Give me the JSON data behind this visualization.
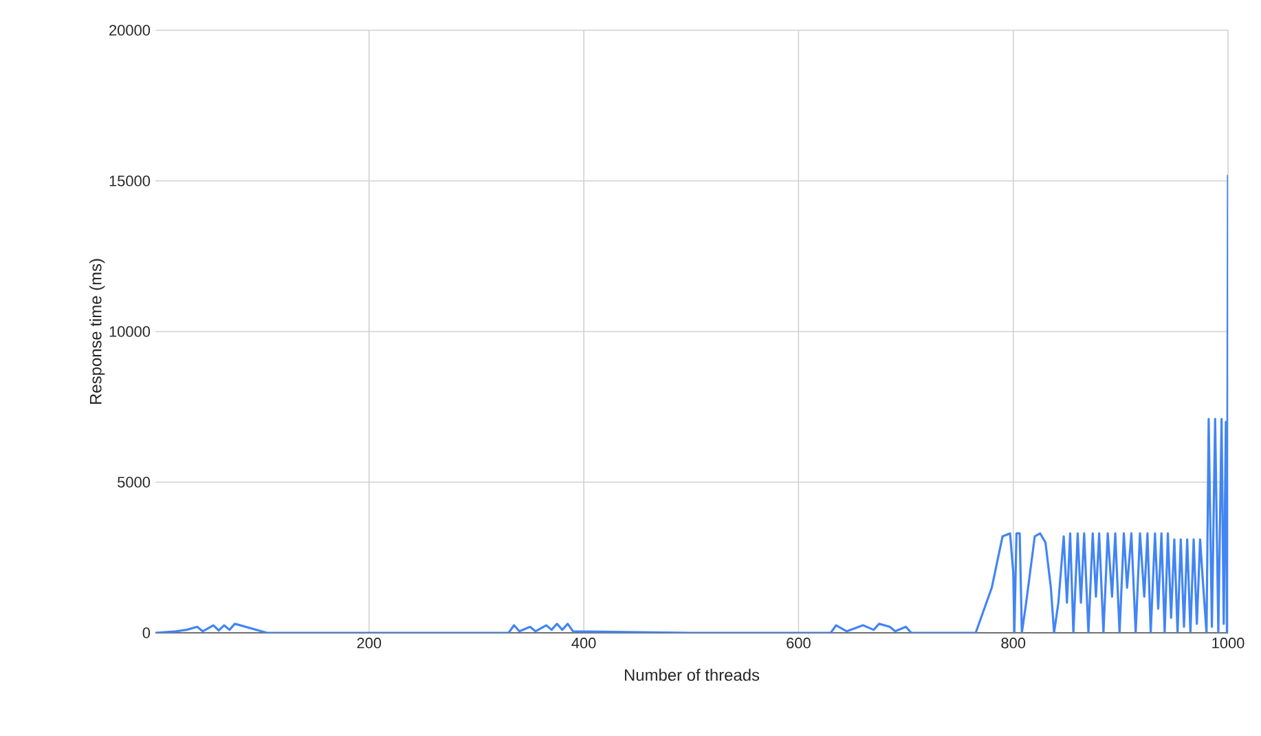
{
  "chart_data": {
    "type": "line",
    "xlabel": "Number of threads",
    "ylabel": "Response time (ms)",
    "xlim": [
      1,
      1000
    ],
    "xticks": [
      200,
      400,
      600,
      800,
      1000
    ],
    "ylim": [
      0,
      20000
    ],
    "yticks": [
      0,
      5000,
      10000,
      15000,
      20000
    ],
    "grid": true,
    "marker": "none",
    "line_style": "solid",
    "series": [
      {
        "color": "#4285f4",
        "x": [
          1,
          20,
          30,
          40,
          45,
          55,
          60,
          65,
          70,
          75,
          105,
          330,
          335,
          340,
          350,
          355,
          365,
          370,
          375,
          380,
          385,
          390,
          500,
          630,
          635,
          645,
          660,
          670,
          675,
          685,
          690,
          700,
          705,
          765,
          780,
          790,
          797,
          800,
          801,
          803,
          806,
          808,
          812,
          820,
          825,
          830,
          835,
          838,
          842,
          847,
          850,
          853,
          856,
          860,
          863,
          866,
          870,
          874,
          877,
          880,
          884,
          888,
          892,
          895,
          899,
          903,
          906,
          910,
          914,
          918,
          922,
          925,
          928,
          932,
          935,
          938,
          941,
          944,
          947,
          950,
          953,
          956,
          959,
          962,
          965,
          968,
          971,
          974,
          977,
          980,
          982,
          985,
          988,
          991,
          994,
          996,
          998,
          999,
          1000
        ],
        "values": [
          0,
          50,
          100,
          200,
          50,
          250,
          80,
          250,
          100,
          300,
          0,
          0,
          250,
          50,
          200,
          50,
          250,
          100,
          300,
          100,
          300,
          50,
          0,
          0,
          250,
          50,
          250,
          100,
          300,
          200,
          50,
          200,
          0,
          0,
          1500,
          3200,
          3300,
          2000,
          0,
          3300,
          3300,
          0,
          1000,
          3200,
          3300,
          3000,
          1500,
          0,
          1000,
          3200,
          1000,
          3300,
          0,
          3300,
          1000,
          3300,
          0,
          3300,
          1200,
          3300,
          0,
          3300,
          1200,
          3300,
          0,
          3300,
          1500,
          3300,
          0,
          3300,
          1200,
          3300,
          0,
          3300,
          800,
          3300,
          0,
          3300,
          500,
          3100,
          0,
          3100,
          200,
          3100,
          0,
          3100,
          300,
          3100,
          1500,
          0,
          7100,
          200,
          7100,
          0,
          7100,
          300,
          7000,
          0,
          15200
        ]
      }
    ]
  }
}
